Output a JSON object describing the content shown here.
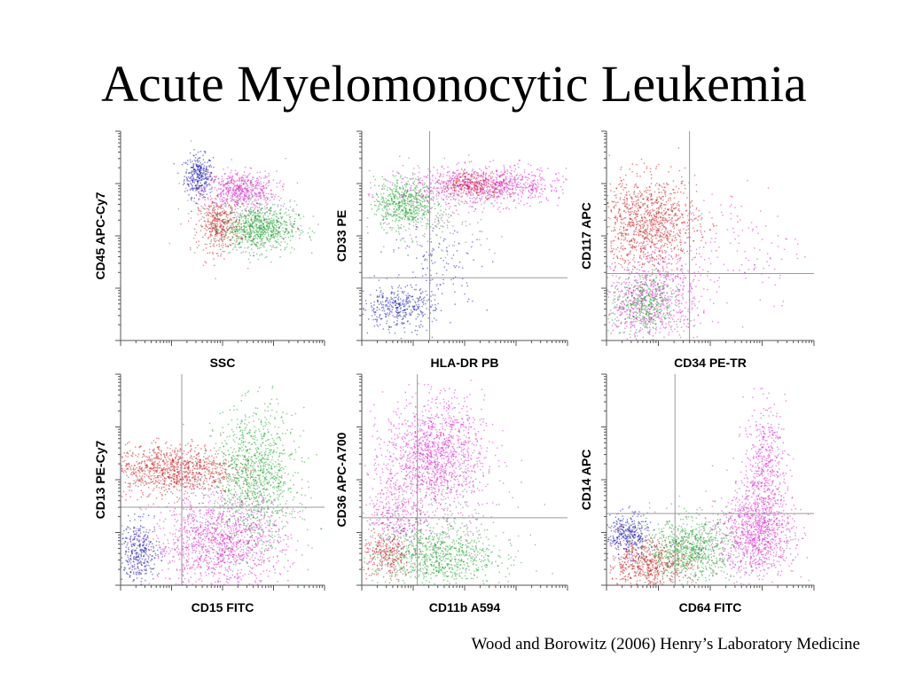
{
  "slide": {
    "title": "Acute Myelomonocytic Leukemia",
    "citation": "Wood and Borowitz (2006) Henry’s Laboratory Medicine"
  },
  "colors": {
    "blue": "#1a1ab8",
    "red": "#cc1a1a",
    "green": "#1aaa2a",
    "magenta": "#e020d0",
    "black": "#222222"
  },
  "chart_data": [
    {
      "type": "scatter",
      "xlabel": "SSC",
      "ylabel": "CD45 APC-Cy7",
      "quadrant_lines": false,
      "populations": [
        {
          "color": "blue",
          "center": [
            0.38,
            0.79
          ],
          "spread": [
            0.035,
            0.05
          ],
          "n": 320
        },
        {
          "color": "magenta",
          "center": [
            0.58,
            0.72
          ],
          "spread": [
            0.09,
            0.045
          ],
          "n": 520
        },
        {
          "color": "red",
          "center": [
            0.48,
            0.55
          ],
          "spread": [
            0.05,
            0.06
          ],
          "n": 360
        },
        {
          "color": "green",
          "center": [
            0.68,
            0.54
          ],
          "spread": [
            0.09,
            0.055
          ],
          "n": 700
        },
        {
          "color": "black",
          "center": [
            0.6,
            0.6
          ],
          "spread": [
            0.13,
            0.1
          ],
          "n": 260
        }
      ]
    },
    {
      "type": "scatter",
      "xlabel": "HLA-DR PB",
      "ylabel": "CD33 PE",
      "quadrant_lines": true,
      "quadrant_cross": [
        0.33,
        0.3
      ],
      "populations": [
        {
          "color": "green",
          "center": [
            0.2,
            0.66
          ],
          "spread": [
            0.07,
            0.06
          ],
          "n": 550
        },
        {
          "color": "magenta",
          "center": [
            0.6,
            0.74
          ],
          "spread": [
            0.2,
            0.045
          ],
          "n": 900
        },
        {
          "color": "red",
          "center": [
            0.55,
            0.75
          ],
          "spread": [
            0.08,
            0.03
          ],
          "n": 250
        },
        {
          "color": "blue",
          "center": [
            0.17,
            0.16
          ],
          "spread": [
            0.09,
            0.05
          ],
          "n": 380
        },
        {
          "color": "blue",
          "center": [
            0.38,
            0.35
          ],
          "spread": [
            0.12,
            0.1
          ],
          "n": 120
        },
        {
          "color": "black",
          "center": [
            0.35,
            0.6
          ],
          "spread": [
            0.15,
            0.1
          ],
          "n": 200
        }
      ]
    },
    {
      "type": "scatter",
      "xlabel": "CD34 PE-TR",
      "ylabel": "CD117 APC",
      "quadrant_lines": true,
      "quadrant_cross": [
        0.4,
        0.32
      ],
      "populations": [
        {
          "color": "red",
          "center": [
            0.2,
            0.56
          ],
          "spread": [
            0.12,
            0.11
          ],
          "n": 1100
        },
        {
          "color": "magenta",
          "center": [
            0.2,
            0.2
          ],
          "spread": [
            0.12,
            0.1
          ],
          "n": 800
        },
        {
          "color": "green",
          "center": [
            0.18,
            0.17
          ],
          "spread": [
            0.08,
            0.07
          ],
          "n": 400
        },
        {
          "color": "magenta",
          "center": [
            0.6,
            0.45
          ],
          "spread": [
            0.18,
            0.15
          ],
          "n": 140
        }
      ]
    },
    {
      "type": "scatter",
      "xlabel": "CD15 FITC",
      "ylabel": "CD13 PE-Cy7",
      "quadrant_lines": true,
      "quadrant_cross": [
        0.3,
        0.37
      ],
      "populations": [
        {
          "color": "red",
          "center": [
            0.25,
            0.55
          ],
          "spread": [
            0.15,
            0.06
          ],
          "n": 1000
        },
        {
          "color": "green",
          "center": [
            0.66,
            0.53
          ],
          "spread": [
            0.1,
            0.15
          ],
          "n": 1000
        },
        {
          "color": "magenta",
          "center": [
            0.48,
            0.2
          ],
          "spread": [
            0.16,
            0.11
          ],
          "n": 1200
        },
        {
          "color": "blue",
          "center": [
            0.09,
            0.16
          ],
          "spread": [
            0.05,
            0.07
          ],
          "n": 350
        },
        {
          "color": "black",
          "center": [
            0.56,
            0.3
          ],
          "spread": [
            0.17,
            0.12
          ],
          "n": 250
        }
      ]
    },
    {
      "type": "scatter",
      "xlabel": "CD11b A594",
      "ylabel": "CD36 APC-A700",
      "quadrant_lines": true,
      "quadrant_cross": [
        0.27,
        0.32
      ],
      "populations": [
        {
          "color": "magenta",
          "center": [
            0.35,
            0.62
          ],
          "spread": [
            0.12,
            0.13
          ],
          "n": 1300
        },
        {
          "color": "magenta",
          "center": [
            0.16,
            0.33
          ],
          "spread": [
            0.07,
            0.1
          ],
          "n": 300
        },
        {
          "color": "green",
          "center": [
            0.35,
            0.14
          ],
          "spread": [
            0.15,
            0.07
          ],
          "n": 800
        },
        {
          "color": "red",
          "center": [
            0.12,
            0.14
          ],
          "spread": [
            0.06,
            0.06
          ],
          "n": 250
        },
        {
          "color": "black",
          "center": [
            0.35,
            0.3
          ],
          "spread": [
            0.18,
            0.14
          ],
          "n": 300
        }
      ]
    },
    {
      "type": "scatter",
      "xlabel": "CD64 FITC",
      "ylabel": "CD14 APC",
      "quadrant_lines": true,
      "quadrant_cross": [
        0.33,
        0.34
      ],
      "populations": [
        {
          "color": "blue",
          "center": [
            0.1,
            0.24
          ],
          "spread": [
            0.05,
            0.05
          ],
          "n": 350
        },
        {
          "color": "red",
          "center": [
            0.2,
            0.1
          ],
          "spread": [
            0.1,
            0.06
          ],
          "n": 600
        },
        {
          "color": "green",
          "center": [
            0.4,
            0.17
          ],
          "spread": [
            0.1,
            0.07
          ],
          "n": 700
        },
        {
          "color": "magenta",
          "center": [
            0.72,
            0.25
          ],
          "spread": [
            0.09,
            0.1
          ],
          "n": 900
        },
        {
          "color": "magenta",
          "center": [
            0.76,
            0.55
          ],
          "spread": [
            0.05,
            0.15
          ],
          "n": 500
        },
        {
          "color": "black",
          "center": [
            0.5,
            0.2
          ],
          "spread": [
            0.2,
            0.1
          ],
          "n": 250
        }
      ]
    }
  ]
}
